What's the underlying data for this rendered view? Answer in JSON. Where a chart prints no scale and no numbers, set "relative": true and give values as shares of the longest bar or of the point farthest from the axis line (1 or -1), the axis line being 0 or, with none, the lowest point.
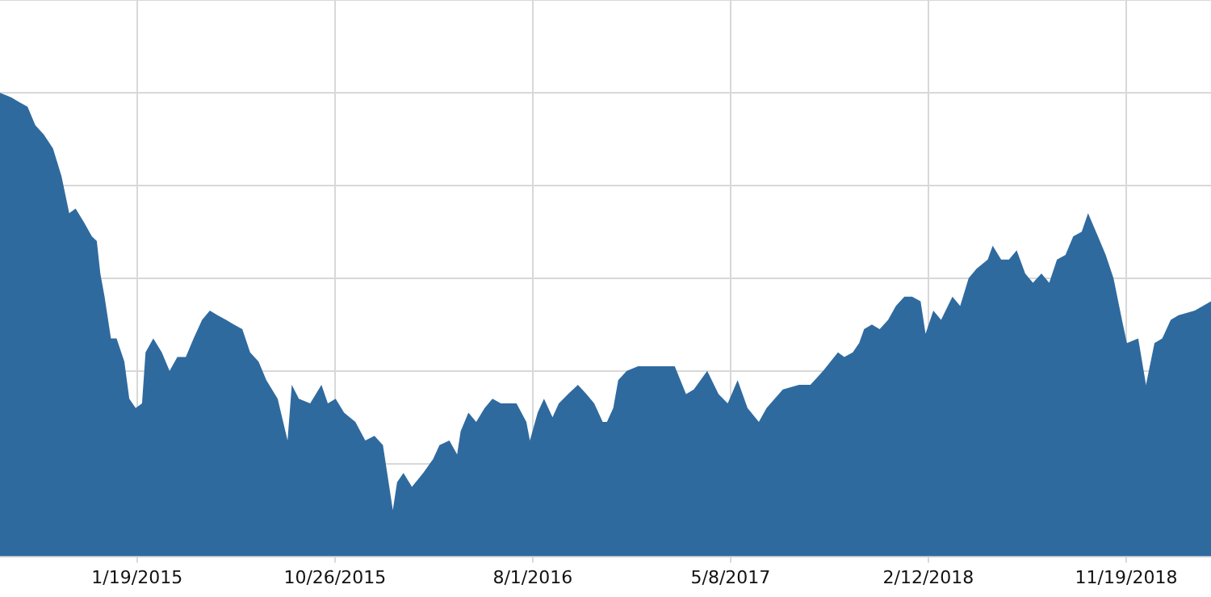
{
  "chart_data": {
    "type": "area",
    "relative": true,
    "grid": true,
    "color": "#2f6a9f",
    "x": [
      "2014-07-09",
      "2014-07-25",
      "2014-08-05",
      "2014-08-17",
      "2014-08-28",
      "2014-09-09",
      "2014-09-22",
      "2014-10-04",
      "2014-10-15",
      "2014-10-24",
      "2014-11-05",
      "2014-11-16",
      "2014-11-23",
      "2014-11-28",
      "2014-12-04",
      "2014-12-13",
      "2014-12-21",
      "2015-01-01",
      "2015-01-08",
      "2015-01-17",
      "2015-01-26",
      "2015-01-31",
      "2015-02-11",
      "2015-02-23",
      "2015-03-06",
      "2015-03-17",
      "2015-03-29",
      "2015-04-09",
      "2015-04-21",
      "2015-05-02",
      "2015-05-13",
      "2015-05-25",
      "2015-06-05",
      "2015-06-17",
      "2015-06-28",
      "2015-07-10",
      "2015-07-21",
      "2015-08-06",
      "2015-08-20",
      "2015-08-26",
      "2015-09-05",
      "2015-09-21",
      "2015-10-07",
      "2015-10-16",
      "2015-10-27",
      "2015-11-08",
      "2015-11-24",
      "2015-12-08",
      "2015-12-21",
      "2016-01-02",
      "2016-01-16",
      "2016-01-22",
      "2016-01-31",
      "2016-02-12",
      "2016-02-28",
      "2016-03-13",
      "2016-03-22",
      "2016-04-05",
      "2016-04-16",
      "2016-04-21",
      "2016-05-02",
      "2016-05-13",
      "2016-05-25",
      "2016-06-05",
      "2016-06-17",
      "2016-06-28",
      "2016-07-09",
      "2016-07-23",
      "2016-07-28",
      "2016-08-08",
      "2016-08-17",
      "2016-08-29",
      "2016-09-07",
      "2016-09-20",
      "2016-10-04",
      "2016-10-16",
      "2016-10-27",
      "2016-11-08",
      "2016-11-14",
      "2016-11-23",
      "2016-11-30",
      "2016-12-12",
      "2016-12-28",
      "2017-01-20",
      "2017-02-18",
      "2017-03-06",
      "2017-03-17",
      "2017-04-05",
      "2017-04-21",
      "2017-05-04",
      "2017-05-18",
      "2017-06-01",
      "2017-06-17",
      "2017-06-28",
      "2017-07-21",
      "2017-08-13",
      "2017-08-29",
      "2017-09-16",
      "2017-10-07",
      "2017-10-16",
      "2017-10-28",
      "2017-11-06",
      "2017-11-13",
      "2017-11-24",
      "2017-12-05",
      "2017-12-17",
      "2017-12-28",
      "2018-01-09",
      "2018-01-20",
      "2018-02-01",
      "2018-02-08",
      "2018-02-19",
      "2018-03-02",
      "2018-03-18",
      "2018-03-29",
      "2018-04-10",
      "2018-04-21",
      "2018-05-07",
      "2018-05-14",
      "2018-05-26",
      "2018-06-06",
      "2018-06-17",
      "2018-06-29",
      "2018-07-10",
      "2018-07-22",
      "2018-08-02",
      "2018-08-13",
      "2018-08-25",
      "2018-09-05",
      "2018-09-17",
      "2018-09-26",
      "2018-10-10",
      "2018-10-21",
      "2018-11-01",
      "2018-11-13",
      "2018-11-20",
      "2018-12-06",
      "2018-12-17",
      "2018-12-29",
      "2019-01-09",
      "2019-01-21",
      "2019-02-01",
      "2019-02-24",
      "2019-03-19"
    ],
    "values": [
      1.0,
      0.99,
      0.98,
      0.97,
      0.93,
      0.91,
      0.88,
      0.82,
      0.74,
      0.75,
      0.72,
      0.69,
      0.68,
      0.61,
      0.56,
      0.47,
      0.47,
      0.42,
      0.34,
      0.32,
      0.33,
      0.44,
      0.47,
      0.44,
      0.4,
      0.43,
      0.43,
      0.47,
      0.51,
      0.53,
      0.52,
      0.51,
      0.5,
      0.49,
      0.44,
      0.42,
      0.38,
      0.34,
      0.25,
      0.37,
      0.34,
      0.33,
      0.37,
      0.33,
      0.34,
      0.31,
      0.29,
      0.25,
      0.26,
      0.24,
      0.1,
      0.16,
      0.18,
      0.15,
      0.18,
      0.21,
      0.24,
      0.25,
      0.22,
      0.27,
      0.31,
      0.29,
      0.32,
      0.34,
      0.33,
      0.33,
      0.33,
      0.29,
      0.25,
      0.31,
      0.34,
      0.3,
      0.33,
      0.35,
      0.37,
      0.35,
      0.33,
      0.29,
      0.29,
      0.32,
      0.38,
      0.4,
      0.41,
      0.41,
      0.41,
      0.35,
      0.36,
      0.4,
      0.35,
      0.33,
      0.38,
      0.32,
      0.29,
      0.32,
      0.36,
      0.37,
      0.37,
      0.4,
      0.44,
      0.43,
      0.44,
      0.46,
      0.49,
      0.5,
      0.49,
      0.51,
      0.54,
      0.56,
      0.56,
      0.55,
      0.48,
      0.53,
      0.51,
      0.56,
      0.54,
      0.6,
      0.62,
      0.64,
      0.67,
      0.64,
      0.64,
      0.66,
      0.61,
      0.59,
      0.61,
      0.59,
      0.64,
      0.65,
      0.69,
      0.7,
      0.74,
      0.69,
      0.65,
      0.6,
      0.51,
      0.46,
      0.47,
      0.37,
      0.46,
      0.47,
      0.51,
      0.52,
      0.53,
      0.55
    ],
    "xlim": [
      "2014-07-09",
      "2019-03-19"
    ],
    "xticks": [
      {
        "value": "2015-01-19",
        "label": "1/19/2015"
      },
      {
        "value": "2015-10-26",
        "label": "10/26/2015"
      },
      {
        "value": "2016-08-01",
        "label": "8/1/2016"
      },
      {
        "value": "2017-05-08",
        "label": "5/8/2017"
      },
      {
        "value": "2018-02-12",
        "label": "2/12/2018"
      },
      {
        "value": "2018-11-19",
        "label": "11/19/2018"
      }
    ]
  }
}
